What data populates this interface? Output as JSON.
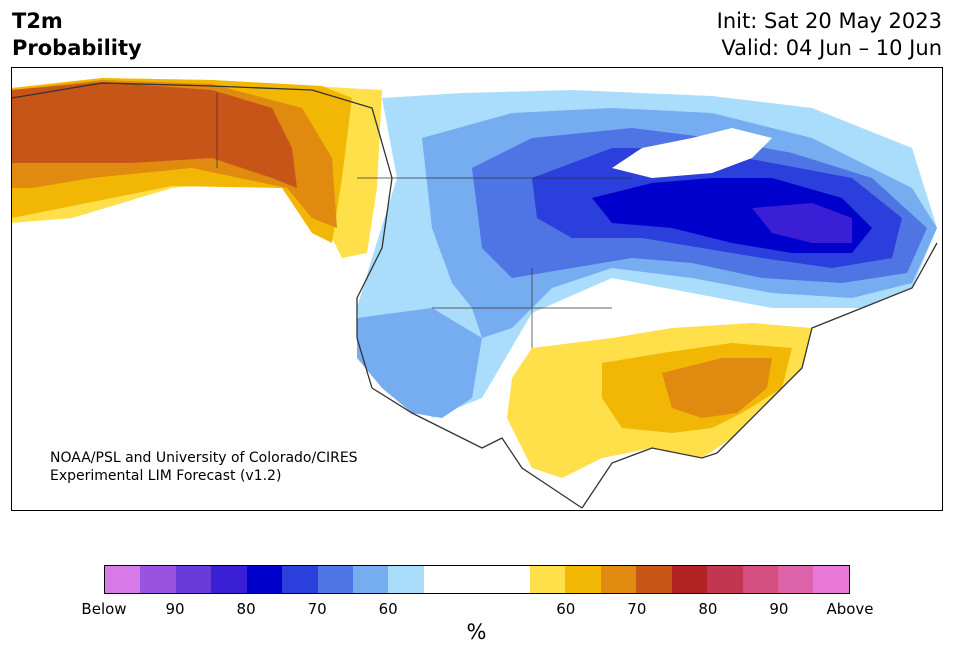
{
  "header": {
    "title_line1": "T2m",
    "title_line2": "Probability",
    "init_text": "Init: Sat 20 May 2023",
    "valid_text": "Valid: 04 Jun – 10 Jun"
  },
  "map": {
    "region": "North America",
    "credit_line1": "NOAA/PSL and University of Colorado/CIRES",
    "credit_line2": "Experimental LIM Forecast (v1.2)"
  },
  "colorbar": {
    "segments": [
      "#d87ae8",
      "#9a52e0",
      "#6a3ad8",
      "#3a1fd6",
      "#0000cc",
      "#2a3fdc",
      "#4f74e4",
      "#76acf0",
      "#aadcfc",
      "#ffffff",
      "#ffffff",
      "#ffffff",
      "#ffe04a",
      "#f2b705",
      "#e08a10",
      "#c85518",
      "#b22222",
      "#c2374f",
      "#d24f80",
      "#dc62aa",
      "#e878d8"
    ],
    "tick_labels": [
      "Below",
      "90",
      "80",
      "70",
      "60",
      "60",
      "70",
      "80",
      "90",
      "Above"
    ],
    "units": "%"
  },
  "colors": {
    "cold_60": "#aadcfc",
    "cold_70": "#4f74e4",
    "cold_80": "#0000cc",
    "warm_60": "#ffe04a",
    "warm_70": "#e08a10",
    "warm_80": "#c85518"
  }
}
